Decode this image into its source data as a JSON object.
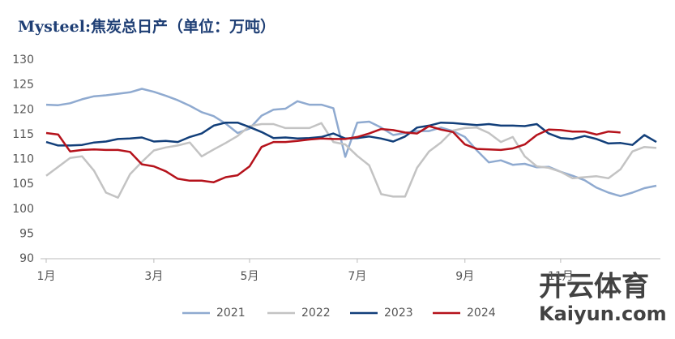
{
  "chart_data": {
    "type": "line",
    "title": "Mysteel:焦炭总日产（单位：万吨）",
    "watermark": "开云体育",
    "watermark_sub": "Kaiyun.com",
    "categories": [
      "1月",
      null,
      null,
      null,
      null,
      null,
      null,
      null,
      null,
      "3月",
      null,
      null,
      null,
      null,
      null,
      null,
      null,
      "5月",
      null,
      null,
      null,
      null,
      null,
      null,
      null,
      null,
      "7月",
      null,
      null,
      null,
      null,
      null,
      null,
      null,
      null,
      "9月",
      null,
      null,
      null,
      null,
      null,
      null,
      null,
      "11月",
      null,
      null,
      null,
      null,
      null,
      null,
      null,
      null
    ],
    "ylim": [
      90,
      130
    ],
    "yticks": [
      90,
      95,
      100,
      105,
      110,
      115,
      120,
      125,
      130
    ],
    "grid": false,
    "legend": "bottom",
    "series": [
      {
        "name": "2021",
        "color": "#8faad0",
        "values": [
          121,
          120.9,
          121.3,
          122.1,
          122.7,
          122.9,
          123.2,
          123.5,
          124.2,
          123.6,
          122.8,
          121.9,
          120.8,
          119.5,
          118.7,
          117.2,
          115.3,
          116.2,
          118.8,
          120,
          120.2,
          121.7,
          121,
          121,
          120.3,
          110.5,
          117.4,
          117.6,
          116.4,
          114.9,
          115.3,
          115.7,
          115.7,
          116.4,
          115.7,
          114.5,
          111.8,
          109.4,
          109.8,
          108.9,
          109.1,
          108.4,
          108.5,
          107.5,
          106.7,
          105.8,
          104.3,
          103.3,
          102.6,
          103.3,
          104.2,
          104.7
        ]
      },
      {
        "name": "2022",
        "color": "#c3c3c3",
        "values": [
          106.7,
          108.5,
          110.3,
          110.6,
          107.7,
          103.3,
          102.3,
          107,
          109.5,
          111.8,
          112.4,
          112.8,
          113.4,
          110.6,
          112,
          113.3,
          114.7,
          116.7,
          117.1,
          117.1,
          116.3,
          116.3,
          116.3,
          117.3,
          113.5,
          113,
          110.7,
          108.8,
          103,
          102.5,
          102.5,
          108.3,
          111.6,
          113.4,
          115.8,
          116.3,
          116.4,
          115.3,
          113.5,
          114.5,
          110.6,
          108.6,
          108.3,
          107.5,
          106.2,
          106.4,
          106.6,
          106.2,
          108,
          111.6,
          112.5,
          112.3
        ]
      },
      {
        "name": "2023",
        "color": "#123f7a",
        "values": [
          113.5,
          112.8,
          112.8,
          112.9,
          113.4,
          113.6,
          114.1,
          114.2,
          114.4,
          113.6,
          113.7,
          113.5,
          114.5,
          115.2,
          116.8,
          117.4,
          117.4,
          116.5,
          115.5,
          114.3,
          114.4,
          114.2,
          114.3,
          114.5,
          115.2,
          114.2,
          114.3,
          114.6,
          114.2,
          113.6,
          114.6,
          116.4,
          116.8,
          117.4,
          117.3,
          117.1,
          116.9,
          117.1,
          116.8,
          116.8,
          116.7,
          117.1,
          115.2,
          114.3,
          114.1,
          114.7,
          114.1,
          113.2,
          113.3,
          112.9,
          114.9,
          113.5
        ]
      },
      {
        "name": "2024",
        "color": "#b5121b",
        "values": [
          115.3,
          115,
          111.6,
          111.9,
          112,
          111.9,
          111.9,
          111.5,
          109,
          108.6,
          107.6,
          106.1,
          105.7,
          105.7,
          105.4,
          106.4,
          106.8,
          108.6,
          112.5,
          113.5,
          113.5,
          113.7,
          114,
          114.2,
          114.1,
          114.1,
          114.5,
          115.2,
          116.1,
          115.9,
          115.4,
          115.2,
          116.7,
          116,
          115.5,
          113,
          112.1,
          112,
          111.9,
          112.2,
          113,
          114.9,
          116,
          115.9,
          115.6,
          115.6,
          115,
          115.6,
          115.4,
          null,
          null,
          null
        ]
      }
    ]
  }
}
